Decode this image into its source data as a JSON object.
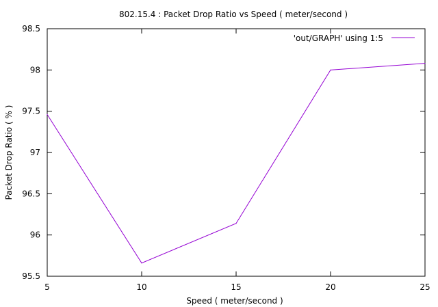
{
  "chart_data": {
    "type": "line",
    "title": "802.15.4 : Packet Drop Ratio vs Speed ( meter/second )",
    "xlabel": "Speed ( meter/second )",
    "ylabel": "Packet Drop Ratio ( % )",
    "xlim": [
      5,
      25
    ],
    "ylim": [
      95.5,
      98.5
    ],
    "x_ticks": [
      "5",
      "10",
      "15",
      "20",
      "25"
    ],
    "y_ticks": [
      "95.5",
      "96",
      "96.5",
      "97",
      "97.5",
      "98",
      "98.5"
    ],
    "grid": false,
    "legend_position": "top-right",
    "series": [
      {
        "name": "'out/GRAPH' using 1:5",
        "color": "#9400d3",
        "x": [
          5,
          10,
          15,
          20,
          25
        ],
        "y": [
          97.46,
          95.66,
          96.14,
          98.0,
          98.08
        ]
      }
    ]
  }
}
